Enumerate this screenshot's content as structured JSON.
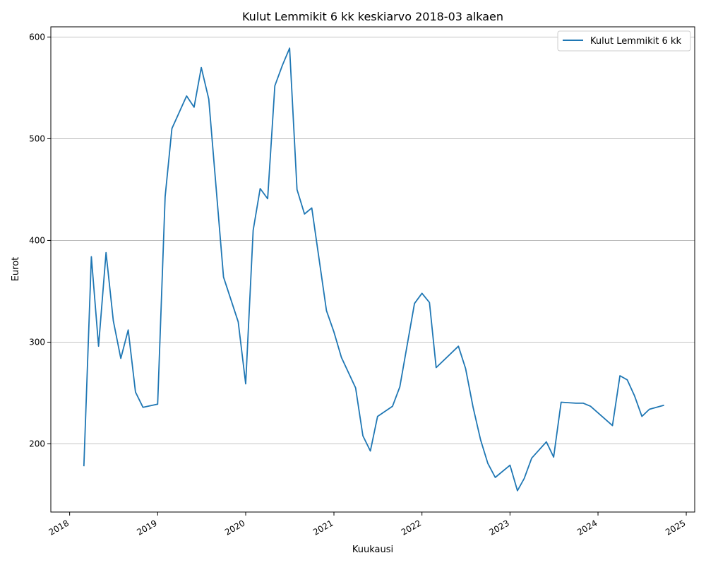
{
  "chart_data": {
    "type": "line",
    "title": "Kulut Lemmikit 6 kk keskiarvo 2018-03 alkaen",
    "xlabel": "Kuukausi",
    "ylabel": "Eurot",
    "xlim": [
      "2017-10-15",
      "2025-02-05"
    ],
    "ylim": [
      133,
      610
    ],
    "x_ticks": [
      "2018",
      "2019",
      "2020",
      "2021",
      "2022",
      "2023",
      "2024",
      "2025"
    ],
    "y_ticks": [
      200,
      300,
      400,
      500,
      600
    ],
    "grid": "horizontal",
    "legend": "top-right",
    "color": "#1f77b4",
    "series": [
      {
        "name": "Kulut Lemmikit 6 kk",
        "x": [
          "2018-03",
          "2018-04",
          "2018-05",
          "2018-06",
          "2018-07",
          "2018-08",
          "2018-09",
          "2018-10",
          "2018-11",
          "2019-01",
          "2019-02",
          "2019-03",
          "2019-05",
          "2019-06",
          "2019-07",
          "2019-08",
          "2019-10",
          "2019-12",
          "2020-01",
          "2020-02",
          "2020-03",
          "2020-04",
          "2020-05",
          "2020-06",
          "2020-07",
          "2020-08",
          "2020-09",
          "2020-10",
          "2020-12",
          "2021-01",
          "2021-02",
          "2021-04",
          "2021-05",
          "2021-06",
          "2021-07",
          "2021-09",
          "2021-10",
          "2021-12",
          "2022-01",
          "2022-02",
          "2022-03",
          "2022-06",
          "2022-07",
          "2022-08",
          "2022-09",
          "2022-10",
          "2022-11",
          "2023-01",
          "2023-02",
          "2023-03",
          "2023-04",
          "2023-06",
          "2023-07",
          "2023-08",
          "2023-10",
          "2023-11",
          "2023-12",
          "2024-03",
          "2024-04",
          "2024-05",
          "2024-06",
          "2024-07",
          "2024-08",
          "2024-10"
        ],
        "values": [
          178,
          384,
          296,
          388,
          321,
          284,
          312,
          251,
          236,
          239,
          443,
          510,
          542,
          531,
          570,
          539,
          364,
          320,
          259,
          410,
          451,
          441,
          552,
          572,
          589,
          450,
          426,
          432,
          331,
          310,
          285,
          255,
          208,
          193,
          227,
          237,
          256,
          338,
          348,
          339,
          275,
          296,
          274,
          236,
          204,
          181,
          167,
          179,
          154,
          166,
          186,
          202,
          187,
          241,
          240,
          240,
          237,
          218,
          267,
          263,
          247,
          227,
          234,
          238
        ]
      }
    ]
  }
}
